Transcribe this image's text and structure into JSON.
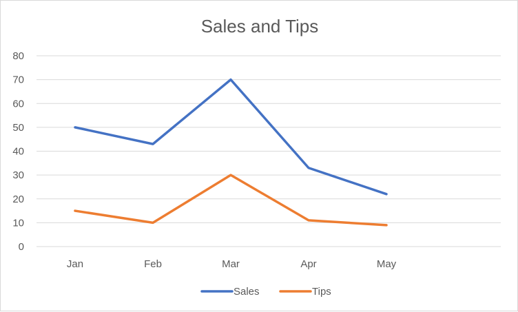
{
  "chart_data": {
    "type": "line",
    "title": "Sales and Tips",
    "categories": [
      "Jan",
      "Feb",
      "Mar",
      "Apr",
      "May"
    ],
    "series": [
      {
        "name": "Sales",
        "values": [
          50,
          43,
          70,
          33,
          22
        ],
        "color": "#4472c4"
      },
      {
        "name": "Tips",
        "values": [
          15,
          10,
          30,
          11,
          9
        ],
        "color": "#ed7d31"
      }
    ],
    "ylim": [
      0,
      80
    ],
    "yticks": [
      "0",
      "10",
      "20",
      "30",
      "40",
      "50",
      "60",
      "70",
      "80"
    ],
    "grid": true,
    "legend_position": "bottom",
    "gridline_color": "#d9d9d9",
    "text_color": "#595959"
  }
}
